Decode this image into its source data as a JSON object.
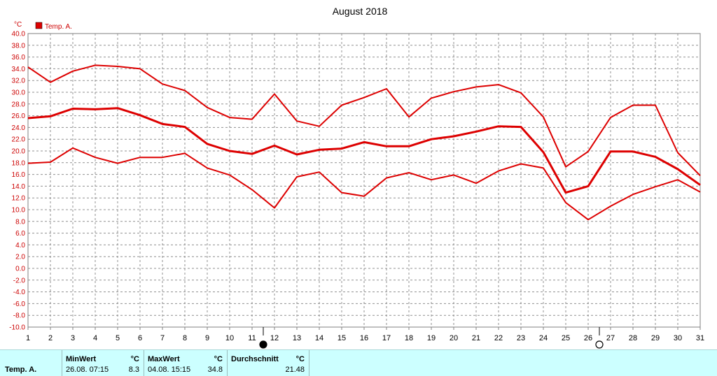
{
  "chart_data": {
    "type": "line",
    "title": "August 2018",
    "unit_label": "°C",
    "legend": {
      "label": "Temp. A.",
      "color": "#dd0000",
      "position": "top-left"
    },
    "x": [
      1,
      2,
      3,
      4,
      5,
      6,
      7,
      8,
      9,
      10,
      11,
      12,
      13,
      14,
      15,
      16,
      17,
      18,
      19,
      20,
      21,
      22,
      23,
      24,
      25,
      26,
      27,
      28,
      29,
      30,
      31
    ],
    "xlim": [
      1,
      31
    ],
    "ylim": [
      -10,
      40
    ],
    "y_ticks": [
      "40.0",
      "38.0",
      "36.0",
      "34.0",
      "32.0",
      "30.0",
      "28.0",
      "26.0",
      "24.0",
      "22.0",
      "20.0",
      "18.0",
      "16.0",
      "14.0",
      "12.0",
      "10.0",
      "8.0",
      "6.0",
      "4.0",
      "2.0",
      "0.0",
      "-2.0",
      "-4.0",
      "-6.0",
      "-8.0",
      "-10.0"
    ],
    "x_ticks": [
      "1",
      "2",
      "3",
      "4",
      "5",
      "6",
      "7",
      "8",
      "9",
      "10",
      "11",
      "12",
      "13",
      "14",
      "15",
      "16",
      "17",
      "18",
      "19",
      "20",
      "21",
      "22",
      "23",
      "24",
      "25",
      "26",
      "27",
      "28",
      "29",
      "30",
      "31"
    ],
    "grid": true,
    "series": [
      {
        "role": "max",
        "color": "#dd0000",
        "values": [
          34.3,
          31.7,
          33.6,
          34.6,
          34.4,
          34.0,
          31.4,
          30.3,
          27.4,
          25.7,
          25.4,
          29.7,
          25.1,
          24.2,
          27.8,
          29.1,
          30.6,
          25.8,
          29.0,
          30.1,
          30.9,
          31.3,
          29.9,
          25.8,
          17.3,
          19.9,
          25.7,
          27.8,
          27.8,
          19.7,
          15.8
        ]
      },
      {
        "role": "mean",
        "color": "#dd0000",
        "values": [
          25.6,
          25.9,
          27.2,
          27.1,
          27.3,
          26.1,
          24.6,
          24.1,
          21.2,
          20.0,
          19.5,
          20.9,
          19.4,
          20.2,
          20.4,
          21.5,
          20.8,
          20.8,
          22.0,
          22.5,
          23.3,
          24.2,
          24.1,
          19.8,
          12.9,
          14.0,
          19.9,
          19.9,
          19.0,
          16.9,
          14.2
        ]
      },
      {
        "role": "min",
        "color": "#dd0000",
        "values": [
          17.9,
          18.1,
          20.5,
          18.9,
          17.9,
          18.9,
          18.9,
          19.6,
          17.1,
          15.9,
          13.4,
          10.3,
          15.6,
          16.4,
          12.9,
          12.3,
          15.4,
          16.3,
          15.1,
          15.9,
          14.5,
          16.6,
          17.8,
          17.1,
          11.2,
          8.3,
          10.6,
          12.6,
          13.9,
          15.1,
          13.0
        ]
      }
    ],
    "moon_phases": [
      {
        "day": 11.5,
        "phase": "new-moon"
      },
      {
        "day": 26.5,
        "phase": "full-moon"
      }
    ]
  },
  "stats": {
    "row_label": "Temp. A.",
    "min": {
      "header": "MinWert",
      "unit": "°C",
      "datetime": "26.08.  07:15",
      "value": "8.3"
    },
    "max": {
      "header": "MaxWert",
      "unit": "°C",
      "datetime": "04.08.  15:15",
      "value": "34.8"
    },
    "avg": {
      "header": "Durchschnitt",
      "unit": "°C",
      "value": "21.48"
    }
  }
}
